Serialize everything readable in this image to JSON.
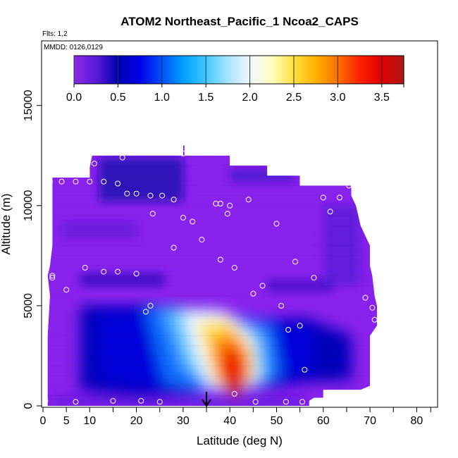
{
  "chart_data": {
    "type": "heatmap",
    "title": "ATOM2 Northeast_Pacific_1 Ncoa2_CAPS",
    "flights_label": "Flts: 1,2",
    "mmdd_label": "MMDD: 0126,0129",
    "xlabel": "Latitude (deg N)",
    "ylabel": "Altitude (m)",
    "xlim": [
      0,
      83
    ],
    "ylim": [
      0,
      18000
    ],
    "x_ticks": [
      0,
      5,
      10,
      20,
      30,
      40,
      50,
      60,
      70,
      80
    ],
    "x_tick_labels": [
      "0",
      "5",
      "10",
      "20",
      "30",
      "40",
      "50",
      "60",
      "70",
      "80"
    ],
    "x_minor_ticks": [
      15,
      25,
      35,
      45,
      55,
      65,
      75,
      83
    ],
    "y_ticks": [
      0,
      5000,
      10000,
      15000
    ],
    "y_tick_labels": [
      "0",
      "5000",
      "10000",
      "15000"
    ],
    "grid": false,
    "colorbar": {
      "placement": "top",
      "range": [
        0,
        3.75
      ],
      "ticks": [
        0,
        0.5,
        1,
        1.5,
        2,
        2.5,
        3,
        3.5
      ],
      "tick_labels": [
        "0.0",
        "0.5",
        "1.0",
        "1.5",
        "2.0",
        "2.5",
        "3.0",
        "3.5"
      ],
      "colors": [
        "#8b2be8",
        "#5a1ad8",
        "#0000b0",
        "#0000e8",
        "#0050ff",
        "#00a0ff",
        "#40c8ff",
        "#a8e4ff",
        "#f0f8ff",
        "#ffffc0",
        "#ffe040",
        "#ffb000",
        "#ff7000",
        "#ff2000",
        "#e00000",
        "#b01818"
      ],
      "colors_value_range": [
        0,
        3.75
      ]
    },
    "background_color": "#8a22ee",
    "field_features": [
      {
        "name": "plume",
        "lat_center_at_bottom": 40,
        "lat_center_at_top": 33,
        "alt_range": [
          500,
          5000
        ],
        "peak_value": 3.5
      },
      {
        "name": "upper-blue-band",
        "lat_range": [
          15,
          30
        ],
        "alt_range": [
          10000,
          12500
        ],
        "peak_value": 0.6
      }
    ],
    "observations_lat_alt": [
      [
        0.5,
        250
      ],
      [
        7,
        200
      ],
      [
        15,
        250
      ],
      [
        21,
        250
      ],
      [
        25,
        200
      ],
      [
        45.5,
        200
      ],
      [
        52,
        200
      ],
      [
        55.5,
        200
      ],
      [
        2,
        6400
      ],
      [
        2,
        6500
      ],
      [
        5,
        5800
      ],
      [
        9,
        6900
      ],
      [
        13,
        6700
      ],
      [
        16,
        6700
      ],
      [
        20,
        6600
      ],
      [
        23,
        5000
      ],
      [
        22,
        4700
      ],
      [
        28,
        7900
      ],
      [
        34,
        8300
      ],
      [
        38,
        7300
      ],
      [
        41,
        6900
      ],
      [
        45,
        5600
      ],
      [
        47,
        6000
      ],
      [
        51,
        5000
      ],
      [
        52.5,
        3800
      ],
      [
        55,
        4000
      ],
      [
        56,
        1800
      ],
      [
        54,
        7200
      ],
      [
        58,
        6400
      ],
      [
        69,
        5400
      ],
      [
        70.5,
        4900
      ],
      [
        71,
        4300
      ],
      [
        70,
        700
      ],
      [
        41,
        600
      ],
      [
        1.5,
        11200
      ],
      [
        4,
        11200
      ],
      [
        7,
        11200
      ],
      [
        10,
        11200
      ],
      [
        13,
        11200
      ],
      [
        16,
        11100
      ],
      [
        18,
        10600
      ],
      [
        20,
        10600
      ],
      [
        23,
        10500
      ],
      [
        25.5,
        10500
      ],
      [
        28,
        10300
      ],
      [
        23.5,
        9600
      ],
      [
        30,
        9400
      ],
      [
        32,
        9200
      ],
      [
        37,
        10100
      ],
      [
        38,
        10100
      ],
      [
        39.5,
        9600
      ],
      [
        40,
        10000
      ],
      [
        44,
        10300
      ],
      [
        50,
        9100
      ],
      [
        60,
        10400
      ],
      [
        61.5,
        9700
      ],
      [
        63.5,
        10400
      ],
      [
        65.5,
        11000
      ],
      [
        11,
        12100
      ],
      [
        17,
        12400
      ],
      [
        30,
        12600
      ]
    ],
    "arrow_latitude": 35
  }
}
